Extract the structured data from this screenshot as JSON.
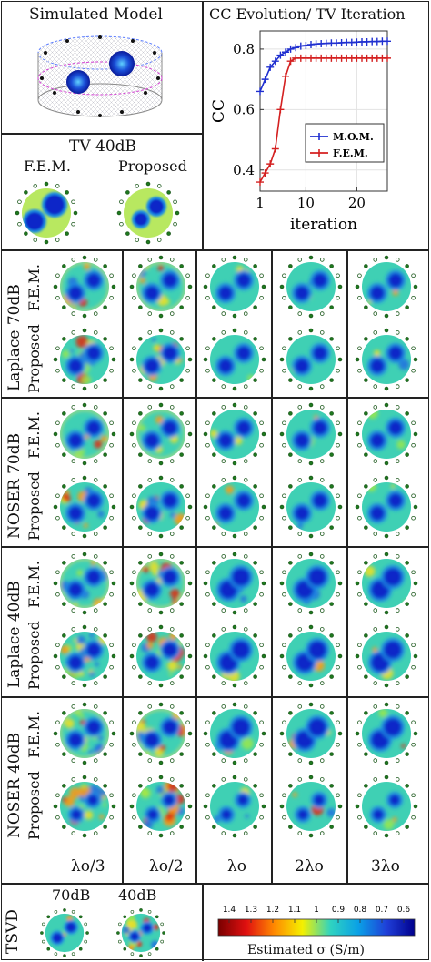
{
  "sim_model": {
    "title": "Simulated Model"
  },
  "cc_chart": {
    "title": "CC Evolution/ TV Iteration",
    "chart_data": {
      "type": "line",
      "title": "CC Evolution/ TV Iteration",
      "xlabel": "iteration",
      "ylabel": "CC",
      "xlim": [
        1,
        26
      ],
      "ylim": [
        0.33,
        0.86
      ],
      "xticks": [
        "1",
        "10",
        "20"
      ],
      "yticks": [
        "0.4",
        "0.6",
        "0.8"
      ],
      "grid": true,
      "legend_position": "bottom-right",
      "series": [
        {
          "name": "M.O.M.",
          "color": "#1f2fd0",
          "x": [
            1,
            2,
            3,
            4,
            5,
            6,
            7,
            8,
            9,
            10,
            11,
            12,
            13,
            14,
            15,
            16,
            17,
            18,
            19,
            20,
            21,
            22,
            23,
            24,
            25,
            26
          ],
          "y": [
            0.66,
            0.7,
            0.74,
            0.76,
            0.78,
            0.79,
            0.8,
            0.805,
            0.81,
            0.812,
            0.815,
            0.817,
            0.818,
            0.819,
            0.82,
            0.82,
            0.821,
            0.822,
            0.822,
            0.823,
            0.824,
            0.824,
            0.825,
            0.825,
            0.826,
            0.826
          ]
        },
        {
          "name": "F.E.M.",
          "color": "#d42020",
          "x": [
            1,
            2,
            3,
            4,
            5,
            6,
            7,
            8,
            9,
            10,
            11,
            12,
            13,
            14,
            15,
            16,
            17,
            18,
            19,
            20,
            21,
            22,
            23,
            24,
            25,
            26
          ],
          "y": [
            0.36,
            0.39,
            0.42,
            0.47,
            0.6,
            0.71,
            0.76,
            0.77,
            0.77,
            0.77,
            0.77,
            0.77,
            0.77,
            0.77,
            0.77,
            0.77,
            0.77,
            0.77,
            0.77,
            0.77,
            0.77,
            0.77,
            0.77,
            0.77,
            0.77,
            0.77
          ]
        }
      ]
    }
  },
  "tv_panel": {
    "title": "TV 40dB",
    "labels": [
      "F.E.M.",
      "Proposed"
    ]
  },
  "groups": [
    {
      "label": "Laplace 70dB",
      "rows": [
        "F.E.M.",
        "Proposed"
      ]
    },
    {
      "label": "NOSER 70dB",
      "rows": [
        "F.E.M.",
        "Proposed"
      ]
    },
    {
      "label": "Laplace 40dB",
      "rows": [
        "F.E.M.",
        "Proposed"
      ]
    },
    {
      "label": "NOSER 40dB",
      "rows": [
        "F.E.M.",
        "Proposed"
      ]
    }
  ],
  "column_labels": [
    "λo/3",
    "λo/2",
    "λo",
    "2λo",
    "3λo"
  ],
  "tsvd": {
    "label": "TSVD",
    "labels": [
      "70dB",
      "40dB"
    ]
  },
  "colorbar": {
    "ticks": [
      "1.4",
      "1.3",
      "1.2",
      "1.1",
      "1",
      "0.9",
      "0.8",
      "0.7",
      "0.6"
    ],
    "label": "Estimated σ (S/m)",
    "colors": [
      "#7a0000",
      "#e01010",
      "#ff8a00",
      "#f4f000",
      "#2fd3c0",
      "#0aa0e6",
      "#1f3fd8",
      "#00008e"
    ]
  }
}
